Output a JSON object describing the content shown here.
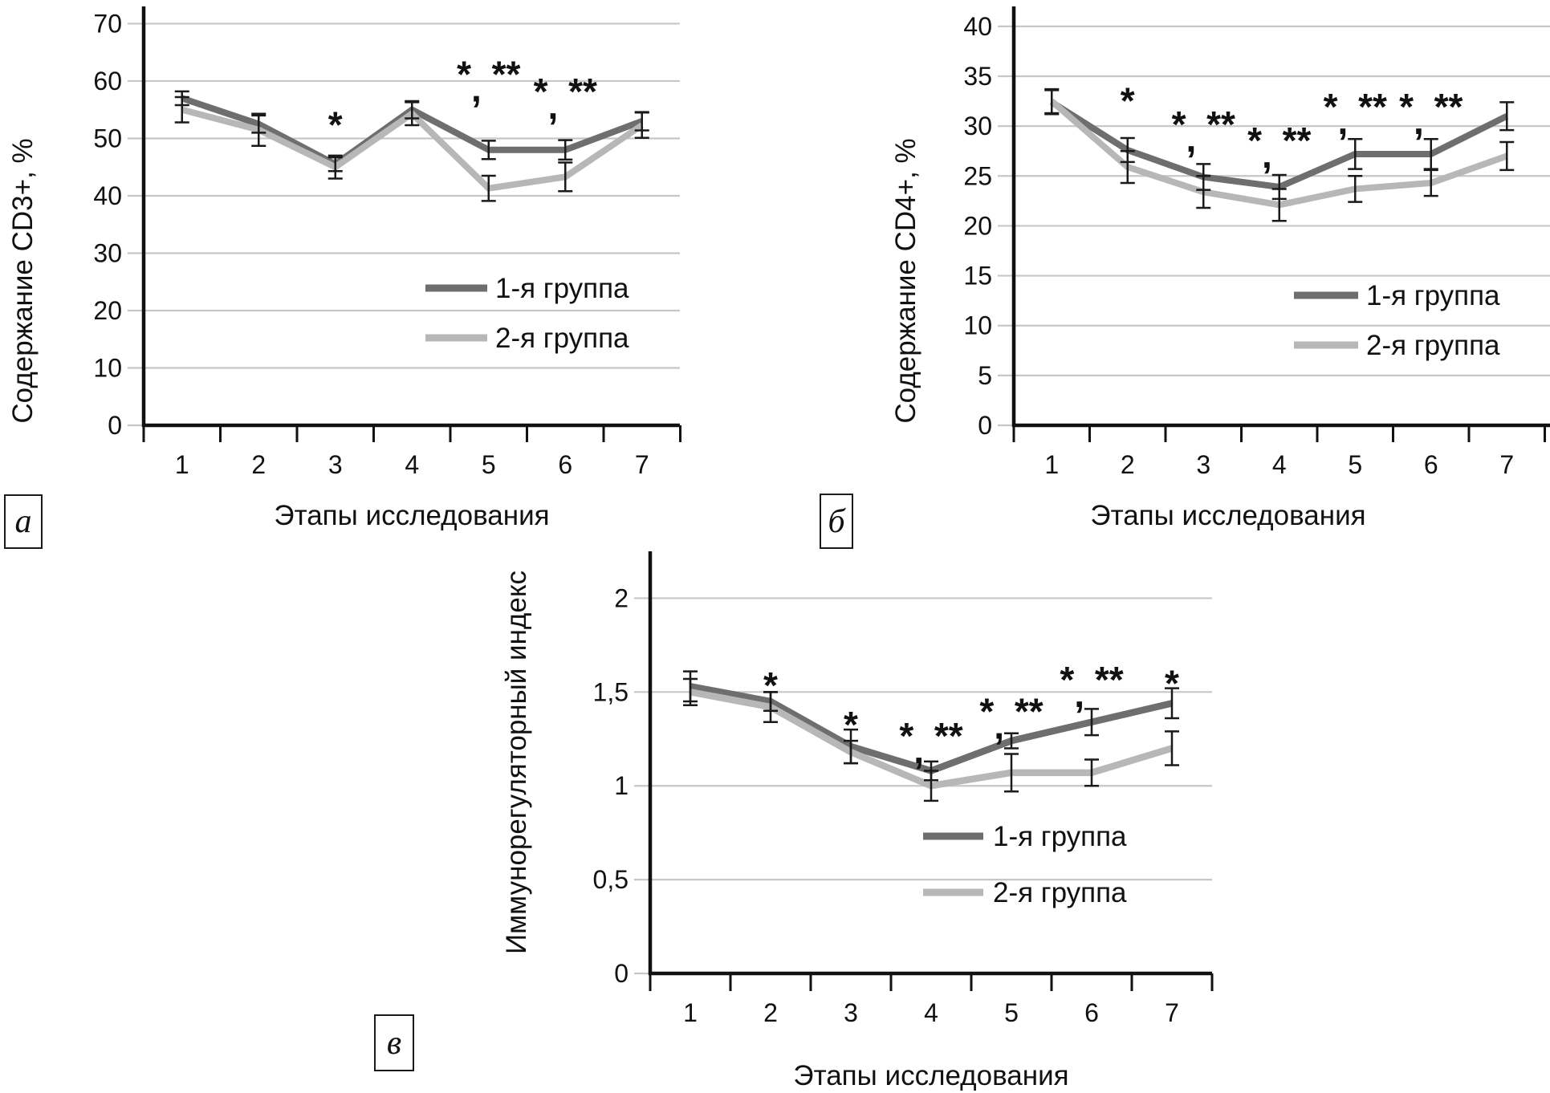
{
  "figure": {
    "x_axis_title": "Этапы исследования",
    "legend_labels": [
      "1-я группа",
      "2-я группа"
    ]
  },
  "colors": {
    "series1": "#6e6e6e",
    "series2": "#b7b7b7",
    "grid": "#c7c7c7",
    "axis": "#111111",
    "error_bar": "#1a1a1a",
    "text": "#111111"
  },
  "chart_data": [
    {
      "type": "line",
      "panel_letter": "а",
      "title": "",
      "xlabel": "Этапы исследования",
      "ylabel": "Содержание CD3+, %",
      "categories": [
        "1",
        "2",
        "3",
        "4",
        "5",
        "6",
        "7"
      ],
      "ylim": [
        0,
        73
      ],
      "yticks": [
        {
          "v": 0,
          "label": "0"
        },
        {
          "v": 10,
          "label": "10"
        },
        {
          "v": 20,
          "label": "20"
        },
        {
          "v": 30,
          "label": "30"
        },
        {
          "v": 40,
          "label": "40"
        },
        {
          "v": 50,
          "label": "50"
        },
        {
          "v": 60,
          "label": "60"
        },
        {
          "v": 70,
          "label": "70"
        }
      ],
      "grid": true,
      "legend_position": "inside-right",
      "series": [
        {
          "name": "1-я группа",
          "color": "#6e6e6e",
          "values": [
            57,
            52.5,
            45.5,
            55,
            48,
            48,
            53
          ],
          "errors": [
            1.2,
            1.5,
            1.2,
            1.5,
            1.6,
            1.7,
            1.6
          ]
        },
        {
          "name": "2-я группа",
          "color": "#b7b7b7",
          "values": [
            55,
            51.5,
            45,
            54.3,
            41.3,
            43.3,
            52.3
          ],
          "errors": [
            2.2,
            2.8,
            2.0,
            2.0,
            2.2,
            2.5,
            2.2
          ]
        }
      ],
      "annotations": [
        {
          "x": 3,
          "y": 53.5,
          "text": "*"
        },
        {
          "x": 5,
          "y": 62.3,
          "text": "*, **"
        },
        {
          "x": 6,
          "y": 59.3,
          "text": "*, **"
        }
      ]
    },
    {
      "type": "line",
      "panel_letter": "б",
      "title": "",
      "xlabel": "Этапы исследования",
      "ylabel": "Содержание CD4+, %",
      "categories": [
        "1",
        "2",
        "3",
        "4",
        "5",
        "6",
        "7"
      ],
      "ylim": [
        0,
        42
      ],
      "yticks": [
        {
          "v": 0,
          "label": "0"
        },
        {
          "v": 5,
          "label": "5"
        },
        {
          "v": 10,
          "label": "10"
        },
        {
          "v": 15,
          "label": "15"
        },
        {
          "v": 20,
          "label": "20"
        },
        {
          "v": 25,
          "label": "25"
        },
        {
          "v": 30,
          "label": "30"
        },
        {
          "v": 35,
          "label": "35"
        },
        {
          "v": 40,
          "label": "40"
        }
      ],
      "grid": true,
      "legend_position": "inside-right",
      "series": [
        {
          "name": "1-я группа",
          "color": "#6e6e6e",
          "values": [
            32.4,
            27.6,
            24.9,
            23.9,
            27.2,
            27.2,
            31
          ],
          "errors": [
            1.2,
            1.2,
            1.3,
            1.2,
            1.5,
            1.5,
            1.4
          ]
        },
        {
          "name": "2-я группа",
          "color": "#b7b7b7",
          "values": [
            32.5,
            25.9,
            23.4,
            22.1,
            23.7,
            24.3,
            27
          ],
          "errors": [
            1.2,
            1.6,
            1.6,
            1.6,
            1.3,
            1.3,
            1.4
          ]
        }
      ],
      "annotations": [
        {
          "x": 2,
          "y": 33.2,
          "text": "*"
        },
        {
          "x": 3,
          "y": 30.8,
          "text": "*, **"
        },
        {
          "x": 4,
          "y": 29.2,
          "text": "*, **"
        },
        {
          "x": 5,
          "y": 32.6,
          "text": "*, **"
        },
        {
          "x": 6,
          "y": 32.6,
          "text": "*, **"
        }
      ]
    },
    {
      "type": "line",
      "panel_letter": "в",
      "title": "",
      "xlabel": "Этапы исследования",
      "ylabel": "Иммунорегуляторный индекс",
      "categories": [
        "1",
        "2",
        "3",
        "4",
        "5",
        "6",
        "7"
      ],
      "ylim": [
        0,
        2.25
      ],
      "yticks": [
        {
          "v": 0,
          "label": "0"
        },
        {
          "v": 0.5,
          "label": "0,5"
        },
        {
          "v": 1,
          "label": "1"
        },
        {
          "v": 1.5,
          "label": "1,5"
        },
        {
          "v": 2,
          "label": "2"
        }
      ],
      "grid": true,
      "legend_position": "inside-right",
      "series": [
        {
          "name": "1-я группа",
          "color": "#6e6e6e",
          "values": [
            1.53,
            1.45,
            1.21,
            1.08,
            1.24,
            1.34,
            1.44
          ],
          "errors": [
            0.08,
            0.05,
            0.09,
            0.05,
            0.04,
            0.07,
            0.08
          ]
        },
        {
          "name": "2-я группа",
          "color": "#b7b7b7",
          "values": [
            1.5,
            1.42,
            1.18,
            1.0,
            1.07,
            1.07,
            1.2
          ],
          "errors": [
            0.07,
            0.08,
            0.06,
            0.08,
            0.1,
            0.07,
            0.09
          ]
        }
      ],
      "annotations": [
        {
          "x": 2,
          "y": 1.57,
          "text": "*"
        },
        {
          "x": 3,
          "y": 1.36,
          "text": "*"
        },
        {
          "x": 4,
          "y": 1.3,
          "text": "*, **"
        },
        {
          "x": 5,
          "y": 1.43,
          "text": "*, **"
        },
        {
          "x": 6,
          "y": 1.6,
          "text": "*, **"
        },
        {
          "x": 7,
          "y": 1.58,
          "text": "*"
        }
      ]
    }
  ]
}
